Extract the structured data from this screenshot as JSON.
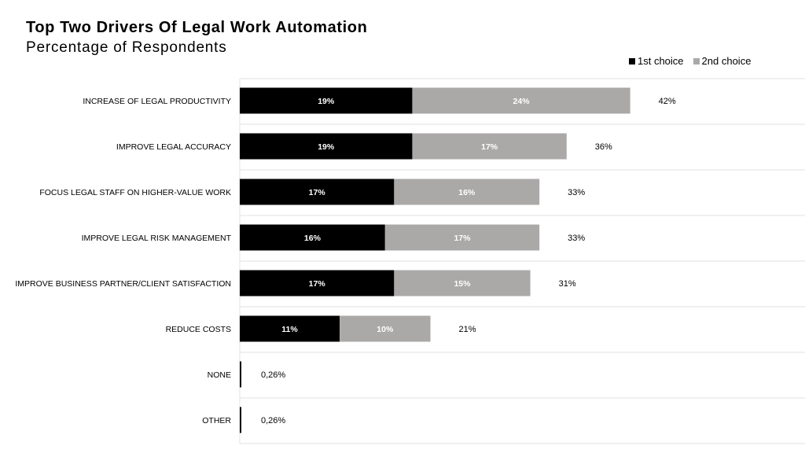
{
  "header": {
    "title": "Top Two Drivers Of Legal Work Automation",
    "subtitle": "Percentage of Respondents"
  },
  "colors": {
    "first": "#000000",
    "second": "#aba9a8",
    "grid": "#e2e2e2"
  },
  "chart_data": {
    "type": "bar",
    "orientation": "horizontal",
    "stacked": true,
    "title": "Top Two Drivers Of Legal Work Automation",
    "subtitle": "Percentage of Respondents",
    "legend_position": "top-right",
    "categories": [
      "INCREASE OF LEGAL PRODUCTIVITY",
      "IMPROVE LEGAL ACCURACY",
      "FOCUS LEGAL STAFF ON HIGHER-VALUE WORK",
      "IMPROVE LEGAL RISK MANAGEMENT",
      "IMPROVE BUSINESS PARTNER/CLIENT SATISFACTION",
      "REDUCE COSTS",
      "NONE",
      "OTHER"
    ],
    "series": [
      {
        "name": "1st choice",
        "values": [
          19,
          19,
          17,
          16,
          17,
          11,
          0,
          0
        ],
        "labels": [
          "19%",
          "19%",
          "17%",
          "16%",
          "17%",
          "11%",
          "",
          ""
        ]
      },
      {
        "name": "2nd choice",
        "values": [
          24,
          17,
          16,
          17,
          15,
          10,
          0,
          0
        ],
        "labels": [
          "24%",
          "17%",
          "16%",
          "17%",
          "15%",
          "10%",
          "",
          ""
        ]
      }
    ],
    "totals": [
      42,
      36,
      33,
      33,
      31,
      21,
      0.26,
      0.26
    ],
    "total_labels": [
      "42%",
      "36%",
      "33%",
      "33%",
      "31%",
      "21%",
      "0,26%",
      "0,26%"
    ],
    "xlim": [
      0,
      50
    ],
    "grid": "horizontal separators"
  }
}
